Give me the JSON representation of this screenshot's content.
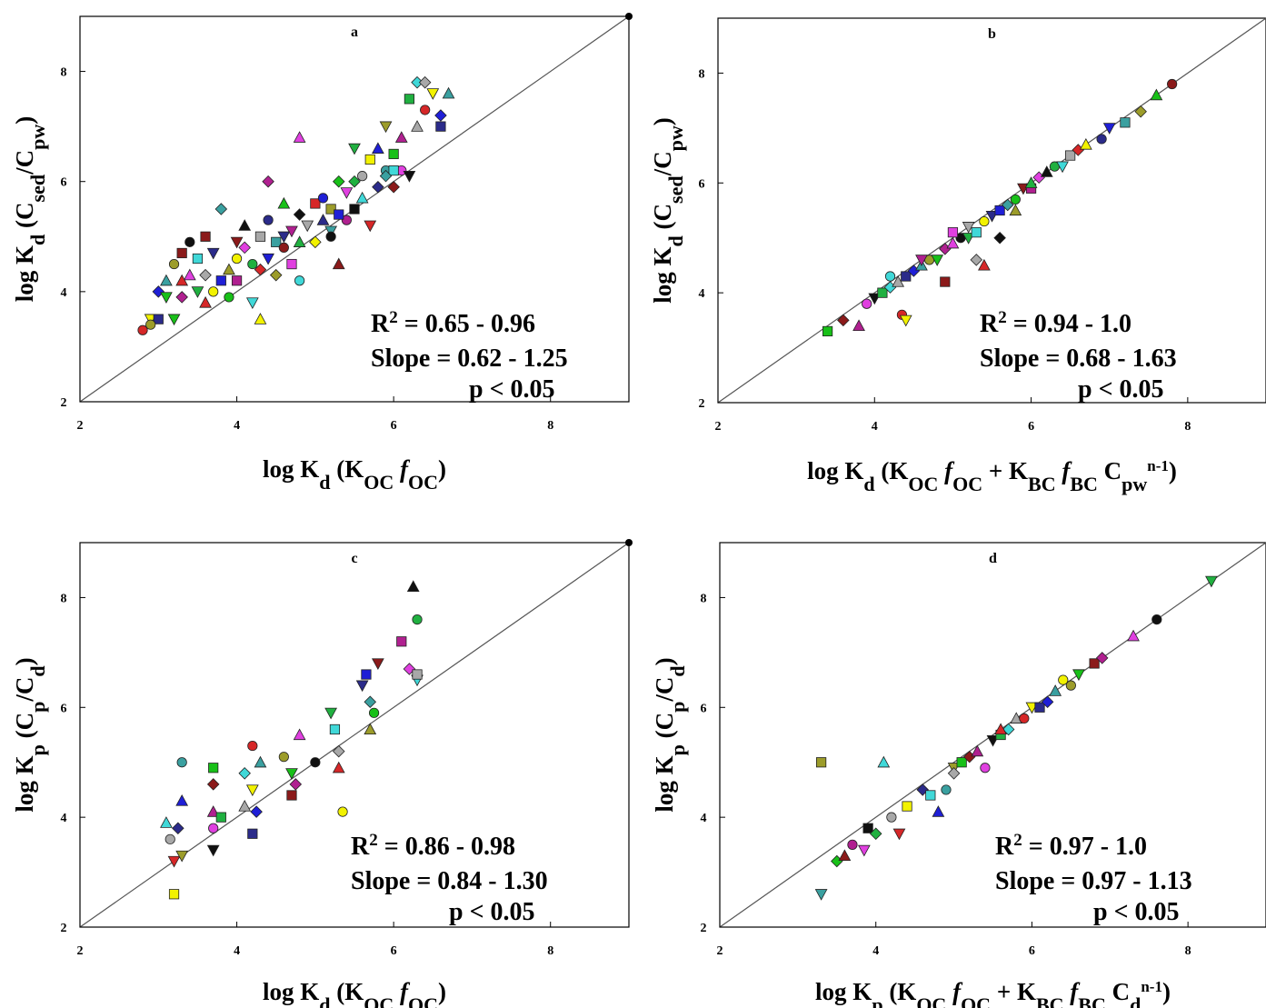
{
  "figure": {
    "colors": [
      "#d62728",
      "#1f1fd6",
      "#18c018",
      "#e040e0",
      "#40d8d8",
      "#f2f200",
      "#3aa0a0",
      "#8b1a1a",
      "#101010",
      "#a8a8a8",
      "#2b2b8a",
      "#9c9c2a",
      "#b02090",
      "#20b040"
    ]
  },
  "chart_data": [
    {
      "id": "a",
      "type": "scatter",
      "panel_label": "a",
      "xlabel": {
        "base": "log K",
        "sub": "d",
        "rest": " (K",
        "sub2": "OC",
        "fpart": " f",
        "sub3": "OC",
        "close": ")"
      },
      "ylabel": {
        "base": "log K",
        "sub": "d",
        "rest": " (C",
        "sub2": "sed",
        "mid": "/C",
        "sub3": "pw",
        "close": ")"
      },
      "xlim": [
        2,
        9
      ],
      "ylim": [
        2,
        9
      ],
      "xticks": [
        "2",
        "4",
        "6",
        "8"
      ],
      "yticks": [
        "2",
        "4",
        "6",
        "8"
      ],
      "one_to_one_line": true,
      "annotation": {
        "r2_prefix": "R",
        "r2_sup": "2",
        "r2_value": " = 0.65 - 0.96",
        "slope": "Slope = 0.62 - 1.25",
        "p": "p < 0.05"
      },
      "points": [
        [
          2.8,
          3.3
        ],
        [
          2.9,
          3.5
        ],
        [
          3.0,
          3.5
        ],
        [
          3.0,
          4.0
        ],
        [
          3.1,
          4.2
        ],
        [
          3.2,
          4.5
        ],
        [
          3.2,
          3.5
        ],
        [
          3.3,
          4.7
        ],
        [
          3.3,
          3.9
        ],
        [
          3.4,
          4.3
        ],
        [
          3.4,
          4.9
        ],
        [
          3.5,
          4.0
        ],
        [
          3.5,
          4.6
        ],
        [
          3.6,
          4.3
        ],
        [
          3.6,
          3.8
        ],
        [
          3.7,
          4.0
        ],
        [
          3.7,
          4.7
        ],
        [
          3.8,
          4.2
        ],
        [
          3.8,
          5.5
        ],
        [
          3.9,
          4.4
        ],
        [
          3.9,
          3.9
        ],
        [
          4.0,
          4.9
        ],
        [
          4.0,
          4.2
        ],
        [
          4.1,
          4.8
        ],
        [
          4.1,
          5.2
        ],
        [
          4.2,
          4.5
        ],
        [
          4.2,
          3.8
        ],
        [
          4.3,
          5.0
        ],
        [
          4.3,
          4.4
        ],
        [
          4.3,
          3.5
        ],
        [
          4.4,
          5.3
        ],
        [
          4.4,
          4.6
        ],
        [
          4.5,
          4.9
        ],
        [
          4.5,
          4.3
        ],
        [
          4.6,
          5.6
        ],
        [
          4.6,
          4.8
        ],
        [
          4.7,
          5.1
        ],
        [
          4.7,
          4.5
        ],
        [
          4.8,
          5.4
        ],
        [
          4.8,
          4.9
        ],
        [
          4.8,
          4.2
        ],
        [
          4.9,
          5.2
        ],
        [
          5.0,
          5.6
        ],
        [
          5.0,
          4.9
        ],
        [
          5.1,
          5.3
        ],
        [
          5.1,
          5.7
        ],
        [
          5.2,
          5.1
        ],
        [
          5.2,
          5.5
        ],
        [
          5.3,
          6.0
        ],
        [
          5.3,
          4.5
        ],
        [
          5.4,
          5.3
        ],
        [
          5.4,
          5.8
        ],
        [
          5.5,
          5.5
        ],
        [
          5.5,
          6.0
        ],
        [
          5.6,
          5.7
        ],
        [
          5.6,
          6.1
        ],
        [
          5.7,
          5.2
        ],
        [
          5.7,
          6.4
        ],
        [
          5.8,
          5.9
        ],
        [
          5.8,
          6.6
        ],
        [
          5.9,
          6.2
        ],
        [
          5.9,
          7.0
        ],
        [
          6.0,
          6.5
        ],
        [
          6.0,
          5.9
        ],
        [
          6.1,
          6.8
        ],
        [
          6.1,
          6.2
        ],
        [
          6.2,
          6.1
        ],
        [
          6.2,
          7.5
        ],
        [
          6.3,
          7.8
        ],
        [
          6.3,
          7.0
        ],
        [
          6.4,
          7.3
        ],
        [
          6.5,
          7.6
        ],
        [
          6.6,
          7.0
        ],
        [
          6.6,
          7.2
        ],
        [
          6.7,
          7.6
        ],
        [
          2.9,
          3.4
        ],
        [
          3.1,
          3.9
        ],
        [
          3.6,
          5.0
        ],
        [
          4.4,
          6.0
        ],
        [
          4.8,
          6.8
        ],
        [
          5.2,
          5.0
        ],
        [
          5.5,
          6.6
        ],
        [
          6.0,
          6.2
        ],
        [
          6.4,
          7.8
        ],
        [
          3.3,
          4.2
        ],
        [
          4.0,
          4.6
        ],
        [
          4.6,
          5.0
        ],
        [
          5.3,
          5.4
        ],
        [
          5.9,
          6.1
        ]
      ]
    },
    {
      "id": "b",
      "type": "scatter",
      "panel_label": "b",
      "xlabel": {
        "base": "log K",
        "sub": "d",
        "rest": " (K",
        "sub2": "OC",
        "fpart": " f",
        "sub3": "OC",
        "plus": " + K",
        "sub4": "BC",
        "fpart2": " f",
        "sub5": "BC",
        "cpart": " C",
        "sub6": "pw",
        "sup": "n-1",
        "close": ")"
      },
      "ylabel": {
        "base": "log K",
        "sub": "d",
        "rest": " (C",
        "sub2": "sed",
        "mid": "/C",
        "sub3": "pw",
        "close": ")"
      },
      "xlim": [
        2,
        9
      ],
      "ylim": [
        2,
        9
      ],
      "xticks": [
        "2",
        "4",
        "6",
        "8"
      ],
      "yticks": [
        "2",
        "4",
        "6",
        "8"
      ],
      "one_to_one_line": true,
      "annotation": {
        "r2_prefix": "R",
        "r2_sup": "2",
        "r2_value": " = 0.94 - 1.0",
        "slope": "Slope = 0.68 - 1.63",
        "p": "p < 0.05"
      },
      "points": [
        [
          3.4,
          3.3
        ],
        [
          3.6,
          3.5
        ],
        [
          3.8,
          3.4
        ],
        [
          3.9,
          3.8
        ],
        [
          4.0,
          3.9
        ],
        [
          4.1,
          4.0
        ],
        [
          4.2,
          4.1
        ],
        [
          4.3,
          4.2
        ],
        [
          4.35,
          3.6
        ],
        [
          4.4,
          3.5
        ],
        [
          4.4,
          4.3
        ],
        [
          4.5,
          4.4
        ],
        [
          4.6,
          4.5
        ],
        [
          4.7,
          4.6
        ],
        [
          4.8,
          4.6
        ],
        [
          4.9,
          4.2
        ],
        [
          4.9,
          4.8
        ],
        [
          5.0,
          4.9
        ],
        [
          5.1,
          5.0
        ],
        [
          5.2,
          5.0
        ],
        [
          5.3,
          5.1
        ],
        [
          5.3,
          4.6
        ],
        [
          5.4,
          4.5
        ],
        [
          5.4,
          5.3
        ],
        [
          5.5,
          5.4
        ],
        [
          5.6,
          5.5
        ],
        [
          5.7,
          5.6
        ],
        [
          5.8,
          5.5
        ],
        [
          5.8,
          5.7
        ],
        [
          5.9,
          5.9
        ],
        [
          6.0,
          5.9
        ],
        [
          6.1,
          6.1
        ],
        [
          6.2,
          6.2
        ],
        [
          6.3,
          6.3
        ],
        [
          6.4,
          6.3
        ],
        [
          6.5,
          6.5
        ],
        [
          6.6,
          6.6
        ],
        [
          6.7,
          6.7
        ],
        [
          6.9,
          6.8
        ],
        [
          7.0,
          7.0
        ],
        [
          7.2,
          7.1
        ],
        [
          7.4,
          7.3
        ],
        [
          7.6,
          7.6
        ],
        [
          7.8,
          7.8
        ],
        [
          4.6,
          4.6
        ],
        [
          5.0,
          5.1
        ],
        [
          5.6,
          5.0
        ],
        [
          6.0,
          6.0
        ],
        [
          4.2,
          4.3
        ],
        [
          5.2,
          5.2
        ]
      ]
    },
    {
      "id": "c",
      "type": "scatter",
      "panel_label": "c",
      "xlabel": {
        "base": "log K",
        "sub": "d",
        "rest": " (K",
        "sub2": "OC",
        "fpart": " f",
        "sub3": "OC",
        "close": ")"
      },
      "ylabel": {
        "base": "log K",
        "sub": "p",
        "rest": " (C",
        "sub2": "p",
        "mid": "/C",
        "sub3": "d",
        "close": ")"
      },
      "xlim": [
        2,
        9
      ],
      "ylim": [
        2,
        9
      ],
      "xticks": [
        "2",
        "4",
        "6",
        "8"
      ],
      "yticks": [
        "2",
        "4",
        "6",
        "8"
      ],
      "one_to_one_line": true,
      "annotation": {
        "r2_prefix": "R",
        "r2_sup": "2",
        "r2_value": " = 0.86 - 0.98",
        "slope": "Slope = 0.84 - 1.30",
        "p": "p < 0.05"
      },
      "points": [
        [
          3.1,
          3.9
        ],
        [
          3.15,
          3.6
        ],
        [
          3.2,
          3.2
        ],
        [
          3.2,
          2.6
        ],
        [
          3.25,
          3.8
        ],
        [
          3.3,
          4.3
        ],
        [
          3.3,
          5.0
        ],
        [
          3.3,
          3.3
        ],
        [
          3.7,
          4.9
        ],
        [
          3.7,
          4.6
        ],
        [
          3.7,
          4.1
        ],
        [
          3.7,
          3.8
        ],
        [
          3.7,
          3.4
        ],
        [
          3.8,
          4.0
        ],
        [
          4.1,
          4.8
        ],
        [
          4.1,
          4.2
        ],
        [
          4.2,
          5.3
        ],
        [
          4.2,
          4.5
        ],
        [
          4.2,
          3.7
        ],
        [
          4.25,
          4.1
        ],
        [
          4.3,
          5.0
        ],
        [
          4.6,
          5.1
        ],
        [
          4.7,
          4.8
        ],
        [
          4.7,
          4.4
        ],
        [
          4.75,
          4.6
        ],
        [
          4.8,
          5.5
        ],
        [
          5.0,
          5.0
        ],
        [
          5.2,
          5.9
        ],
        [
          5.25,
          5.6
        ],
        [
          5.3,
          5.2
        ],
        [
          5.3,
          4.9
        ],
        [
          5.35,
          4.1
        ],
        [
          5.6,
          6.4
        ],
        [
          5.65,
          6.6
        ],
        [
          5.7,
          6.1
        ],
        [
          5.7,
          5.6
        ],
        [
          5.75,
          5.9
        ],
        [
          5.8,
          6.8
        ],
        [
          6.1,
          7.2
        ],
        [
          6.2,
          6.7
        ],
        [
          6.25,
          8.2
        ],
        [
          6.3,
          7.6
        ],
        [
          6.3,
          6.5
        ],
        [
          6.3,
          6.6
        ]
      ]
    },
    {
      "id": "d",
      "type": "scatter",
      "panel_label": "d",
      "xlabel": {
        "base": "log K",
        "sub": "p",
        "rest": " (K",
        "sub2": "OC",
        "fpart": " f",
        "sub3": "OC",
        "plus": " + K",
        "sub4": "BC",
        "fpart2": " f",
        "sub5": "BC",
        "cpart": " C",
        "sub6": "d",
        "sup": "n-1",
        "close": ")"
      },
      "ylabel": {
        "base": "log K",
        "sub": "p",
        "rest": " (C",
        "sub2": "p",
        "mid": "/C",
        "sub3": "d",
        "close": ")"
      },
      "xlim": [
        2,
        9
      ],
      "ylim": [
        2,
        9
      ],
      "xticks": [
        "2",
        "4",
        "6",
        "8"
      ],
      "yticks": [
        "2",
        "4",
        "6",
        "8"
      ],
      "one_to_one_line": true,
      "annotation": {
        "r2_prefix": "R",
        "r2_sup": "2",
        "r2_value": " = 0.97 - 1.0",
        "slope": "Slope = 0.97 - 1.13",
        "p": "p < 0.05"
      },
      "points": [
        [
          3.3,
          2.6
        ],
        [
          3.3,
          5.0
        ],
        [
          3.5,
          3.2
        ],
        [
          3.6,
          3.3
        ],
        [
          3.7,
          3.5
        ],
        [
          3.85,
          3.4
        ],
        [
          3.9,
          3.8
        ],
        [
          4.0,
          3.7
        ],
        [
          4.1,
          5.0
        ],
        [
          4.2,
          4.0
        ],
        [
          4.3,
          3.7
        ],
        [
          4.4,
          4.2
        ],
        [
          4.6,
          4.5
        ],
        [
          4.8,
          4.1
        ],
        [
          4.9,
          4.5
        ],
        [
          5.0,
          4.9
        ],
        [
          5.1,
          5.0
        ],
        [
          5.2,
          5.1
        ],
        [
          5.3,
          5.2
        ],
        [
          5.4,
          4.9
        ],
        [
          5.5,
          5.4
        ],
        [
          5.6,
          5.5
        ],
        [
          5.7,
          5.6
        ],
        [
          5.8,
          5.8
        ],
        [
          5.9,
          5.8
        ],
        [
          6.0,
          6.0
        ],
        [
          6.1,
          6.0
        ],
        [
          6.2,
          6.1
        ],
        [
          6.3,
          6.3
        ],
        [
          6.5,
          6.4
        ],
        [
          6.6,
          6.6
        ],
        [
          6.8,
          6.8
        ],
        [
          6.9,
          6.9
        ],
        [
          7.3,
          7.3
        ],
        [
          7.6,
          7.6
        ],
        [
          8.3,
          8.3
        ],
        [
          4.7,
          4.4
        ],
        [
          5.0,
          4.8
        ],
        [
          5.6,
          5.6
        ],
        [
          6.4,
          6.5
        ]
      ]
    }
  ]
}
